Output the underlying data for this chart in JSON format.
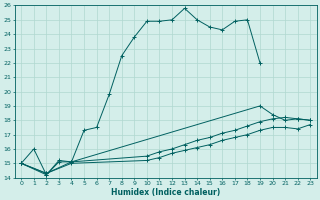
{
  "xlabel": "Humidex (Indice chaleur)",
  "xlim": [
    -0.5,
    23.5
  ],
  "ylim": [
    14,
    26
  ],
  "bg_color": "#d4eeea",
  "grid_color": "#b0d8d0",
  "line_color": "#006060",
  "lines": [
    {
      "x": [
        0,
        1,
        2,
        3,
        4,
        5,
        6,
        7,
        8,
        9,
        10,
        11,
        12,
        13,
        14,
        15,
        16,
        17,
        18,
        19
      ],
      "y": [
        15.0,
        16.0,
        14.2,
        15.2,
        15.1,
        17.3,
        17.5,
        19.8,
        22.5,
        23.8,
        24.9,
        24.9,
        25.0,
        25.8,
        25.0,
        24.5,
        24.3,
        24.9,
        25.0,
        22.0
      ]
    },
    {
      "x": [
        0,
        2,
        3,
        4,
        19,
        20,
        21,
        22,
        23
      ],
      "y": [
        15.0,
        14.2,
        15.1,
        15.1,
        19.0,
        18.4,
        18.0,
        18.1,
        18.0
      ]
    },
    {
      "x": [
        0,
        2,
        4,
        10,
        11,
        12,
        13,
        14,
        15,
        16,
        17,
        18,
        19,
        20,
        21,
        22,
        23
      ],
      "y": [
        15.0,
        14.3,
        15.1,
        15.5,
        15.8,
        16.0,
        16.3,
        16.6,
        16.8,
        17.1,
        17.3,
        17.6,
        17.9,
        18.1,
        18.2,
        18.1,
        18.0
      ]
    },
    {
      "x": [
        0,
        2,
        4,
        10,
        11,
        12,
        13,
        14,
        15,
        16,
        17,
        18,
        19,
        20,
        21,
        22,
        23
      ],
      "y": [
        15.0,
        14.3,
        15.0,
        15.2,
        15.4,
        15.7,
        15.9,
        16.1,
        16.3,
        16.6,
        16.8,
        17.0,
        17.3,
        17.5,
        17.5,
        17.4,
        17.7
      ]
    }
  ],
  "yticks": [
    14,
    15,
    16,
    17,
    18,
    19,
    20,
    21,
    22,
    23,
    24,
    25,
    26
  ],
  "xticks": [
    0,
    1,
    2,
    3,
    4,
    5,
    6,
    7,
    8,
    9,
    10,
    11,
    12,
    13,
    14,
    15,
    16,
    17,
    18,
    19,
    20,
    21,
    22,
    23
  ]
}
